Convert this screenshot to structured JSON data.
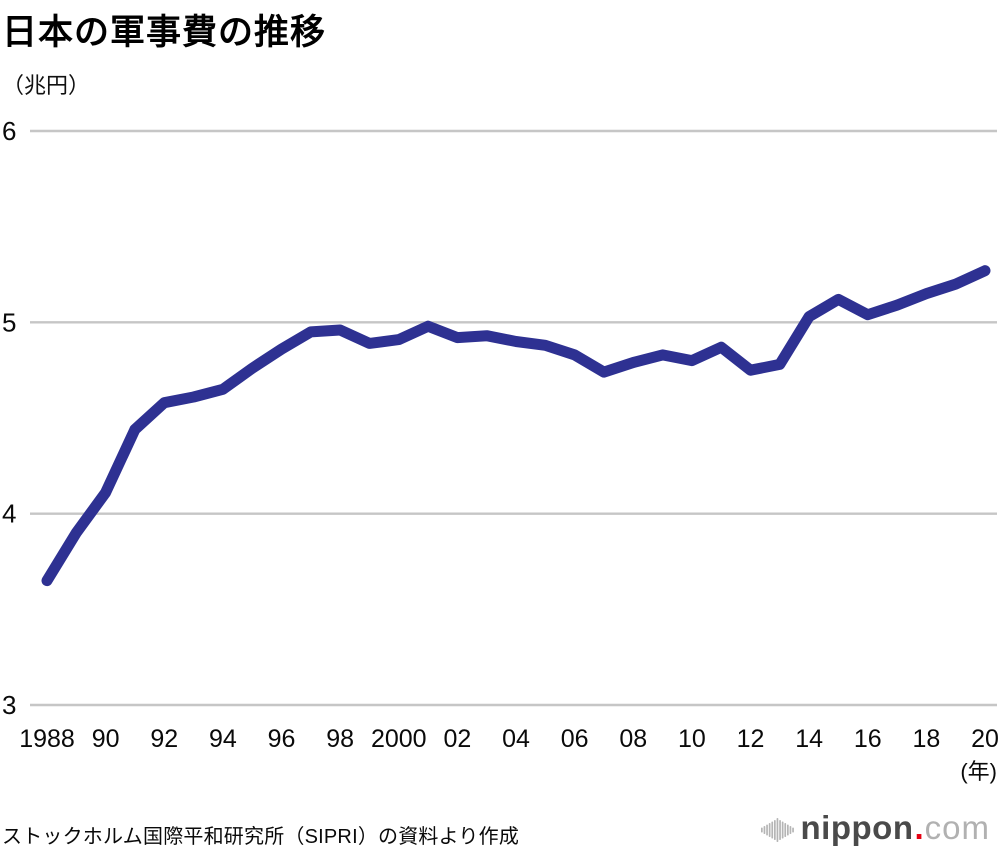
{
  "header": {
    "title": "日本の軍事費の推移",
    "unit_label": "（兆円）"
  },
  "chart_data": {
    "type": "line",
    "title": "日本の軍事費の推移",
    "ylabel": "兆円",
    "xlabel": "年",
    "ylim": [
      3,
      6
    ],
    "y_ticks": [
      3,
      4,
      5,
      6
    ],
    "grid": true,
    "legend": "none",
    "line_color": "#2e3192",
    "grid_color": "#c6c6c6",
    "x": [
      1988,
      1989,
      1990,
      1991,
      1992,
      1993,
      1994,
      1995,
      1996,
      1997,
      1998,
      1999,
      2000,
      2001,
      2002,
      2003,
      2004,
      2005,
      2006,
      2007,
      2008,
      2009,
      2010,
      2011,
      2012,
      2013,
      2014,
      2015,
      2016,
      2017,
      2018,
      2019,
      2020
    ],
    "series": [
      {
        "name": "日本の軍事費（兆円）",
        "values": [
          3.65,
          3.9,
          4.11,
          4.44,
          4.58,
          4.61,
          4.65,
          4.76,
          4.86,
          4.95,
          4.96,
          4.89,
          4.91,
          4.98,
          4.92,
          4.93,
          4.9,
          4.88,
          4.83,
          4.74,
          4.79,
          4.83,
          4.8,
          4.87,
          4.75,
          4.78,
          5.03,
          5.12,
          5.04,
          5.09,
          5.15,
          5.2,
          5.27
        ]
      }
    ],
    "x_tick_labels": [
      {
        "x": 1988,
        "label": "1988"
      },
      {
        "x": 1990,
        "label": "90"
      },
      {
        "x": 1992,
        "label": "92"
      },
      {
        "x": 1994,
        "label": "94"
      },
      {
        "x": 1996,
        "label": "96"
      },
      {
        "x": 1998,
        "label": "98"
      },
      {
        "x": 2000,
        "label": "2000"
      },
      {
        "x": 2002,
        "label": "02"
      },
      {
        "x": 2004,
        "label": "04"
      },
      {
        "x": 2006,
        "label": "06"
      },
      {
        "x": 2008,
        "label": "08"
      },
      {
        "x": 2010,
        "label": "10"
      },
      {
        "x": 2012,
        "label": "12"
      },
      {
        "x": 2014,
        "label": "14"
      },
      {
        "x": 2016,
        "label": "16"
      },
      {
        "x": 2018,
        "label": "18"
      },
      {
        "x": 2020,
        "label": "20"
      }
    ],
    "x_axis_unit": "(年)"
  },
  "footer": {
    "source": "ストックホルム国際平和研究所（SIPRI）の資料より作成",
    "logo": {
      "brand": "nippon",
      "dot": ".",
      "tld": "com"
    }
  },
  "colors": {
    "line": "#2e3192",
    "grid": "#c6c6c6",
    "text": "#0a0a0a",
    "logo_brand": "#4a4a4a",
    "logo_tld": "#b1b1b1",
    "logo_dot": "#e60012"
  }
}
